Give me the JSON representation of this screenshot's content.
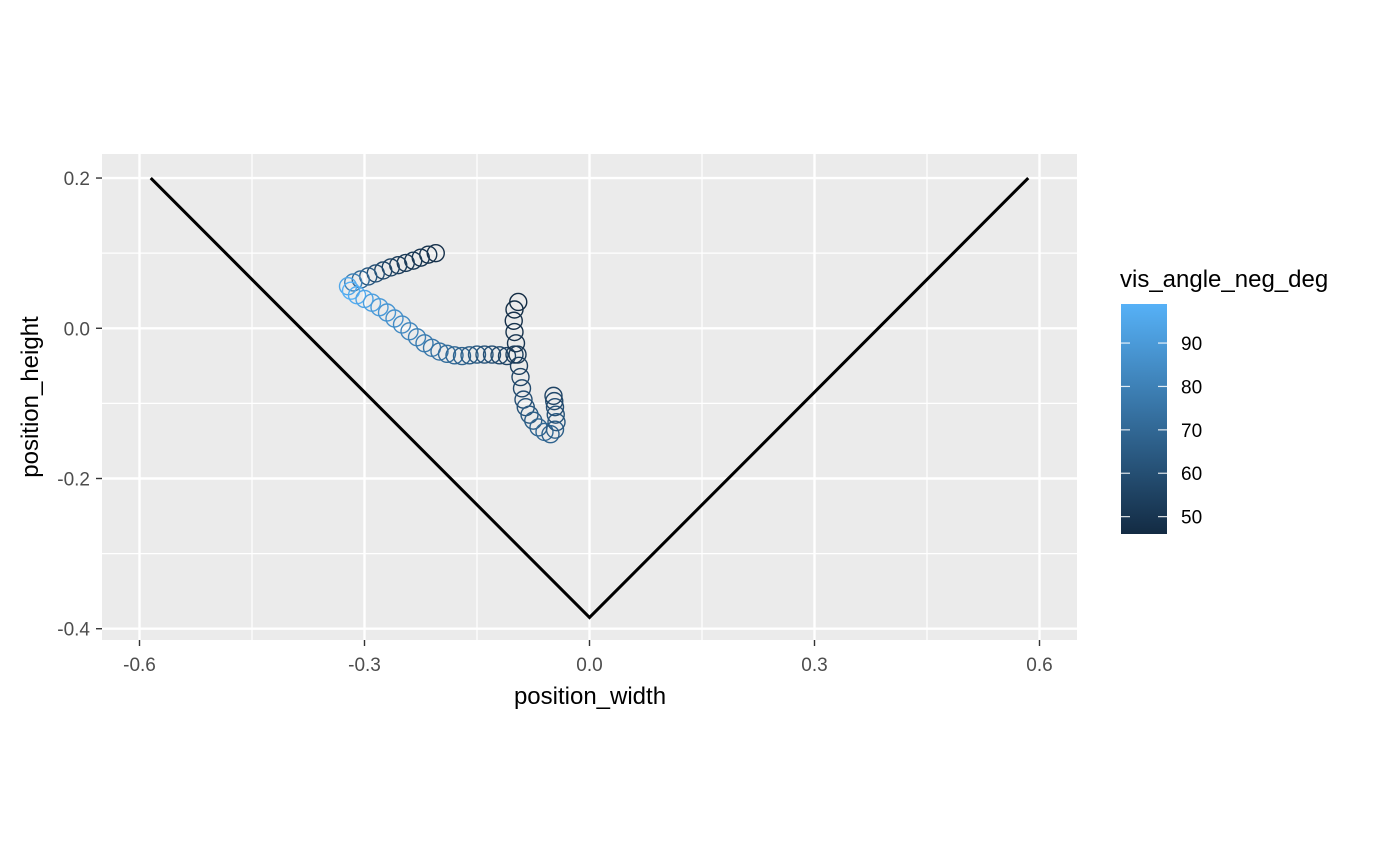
{
  "chart_data": {
    "type": "scatter",
    "xlabel": "position_width",
    "ylabel": "position_height",
    "xlim": [
      -0.65,
      0.65
    ],
    "ylim": [
      -0.415,
      0.232
    ],
    "x_ticks": [
      -0.6,
      -0.3,
      0.0,
      0.3,
      0.6
    ],
    "x_tick_labels": [
      "-0.6",
      "-0.3",
      "0.0",
      "0.3",
      "0.6"
    ],
    "y_ticks": [
      0.2,
      0.0,
      -0.2,
      -0.4
    ],
    "y_tick_labels": [
      "0.2",
      "0.0",
      "-0.2",
      "-0.4"
    ],
    "panel_background": "#ebebeb",
    "grid": true,
    "boundary_line": {
      "color": "#000000",
      "x": [
        -0.585,
        0.0,
        0.585
      ],
      "y": [
        0.2,
        -0.385,
        0.2
      ]
    },
    "color_legend": {
      "title": "vis_angle_neg_deg",
      "position": "right",
      "min": 46,
      "max": 99,
      "low_color": "#132b43",
      "high_color": "#56b1f7",
      "breaks": [
        90,
        80,
        70,
        60,
        50
      ],
      "break_labels": [
        "90",
        "80",
        "70",
        "60",
        "50"
      ]
    },
    "points": {
      "shape": "open-circle",
      "x": [
        -0.205,
        -0.215,
        -0.225,
        -0.235,
        -0.245,
        -0.255,
        -0.265,
        -0.275,
        -0.285,
        -0.295,
        -0.305,
        -0.315,
        -0.322,
        -0.318,
        -0.31,
        -0.3,
        -0.29,
        -0.28,
        -0.27,
        -0.26,
        -0.25,
        -0.24,
        -0.23,
        -0.22,
        -0.21,
        -0.2,
        -0.19,
        -0.18,
        -0.17,
        -0.16,
        -0.15,
        -0.14,
        -0.13,
        -0.12,
        -0.11,
        -0.1,
        -0.095,
        -0.1,
        -0.101,
        -0.1,
        -0.098,
        -0.096,
        -0.094,
        -0.092,
        -0.09,
        -0.088,
        -0.085,
        -0.08,
        -0.075,
        -0.068,
        -0.06,
        -0.052,
        -0.046,
        -0.044,
        -0.045,
        -0.046,
        -0.047,
        -0.048
      ],
      "y": [
        0.1,
        0.098,
        0.094,
        0.09,
        0.087,
        0.084,
        0.081,
        0.077,
        0.073,
        0.069,
        0.065,
        0.061,
        0.056,
        0.05,
        0.044,
        0.039,
        0.034,
        0.028,
        0.021,
        0.013,
        0.005,
        -0.004,
        -0.012,
        -0.02,
        -0.026,
        -0.031,
        -0.034,
        -0.036,
        -0.037,
        -0.036,
        -0.035,
        -0.035,
        -0.035,
        -0.036,
        -0.037,
        -0.035,
        0.035,
        0.025,
        0.01,
        -0.005,
        -0.02,
        -0.035,
        -0.05,
        -0.065,
        -0.08,
        -0.095,
        -0.105,
        -0.115,
        -0.123,
        -0.132,
        -0.138,
        -0.141,
        -0.135,
        -0.125,
        -0.115,
        -0.105,
        -0.097,
        -0.09
      ],
      "color_value": [
        48,
        49,
        50,
        51,
        52,
        53,
        55,
        57,
        60,
        64,
        70,
        80,
        95,
        99,
        97,
        94,
        92,
        90,
        88,
        86,
        84,
        82,
        80,
        78,
        76,
        74,
        72,
        70,
        68,
        66,
        64,
        62,
        60,
        58,
        56,
        54,
        46,
        47,
        48,
        49,
        50,
        52,
        54,
        56,
        58,
        60,
        62,
        64,
        66,
        68,
        70,
        68,
        66,
        64,
        62,
        60,
        58,
        56
      ]
    }
  }
}
